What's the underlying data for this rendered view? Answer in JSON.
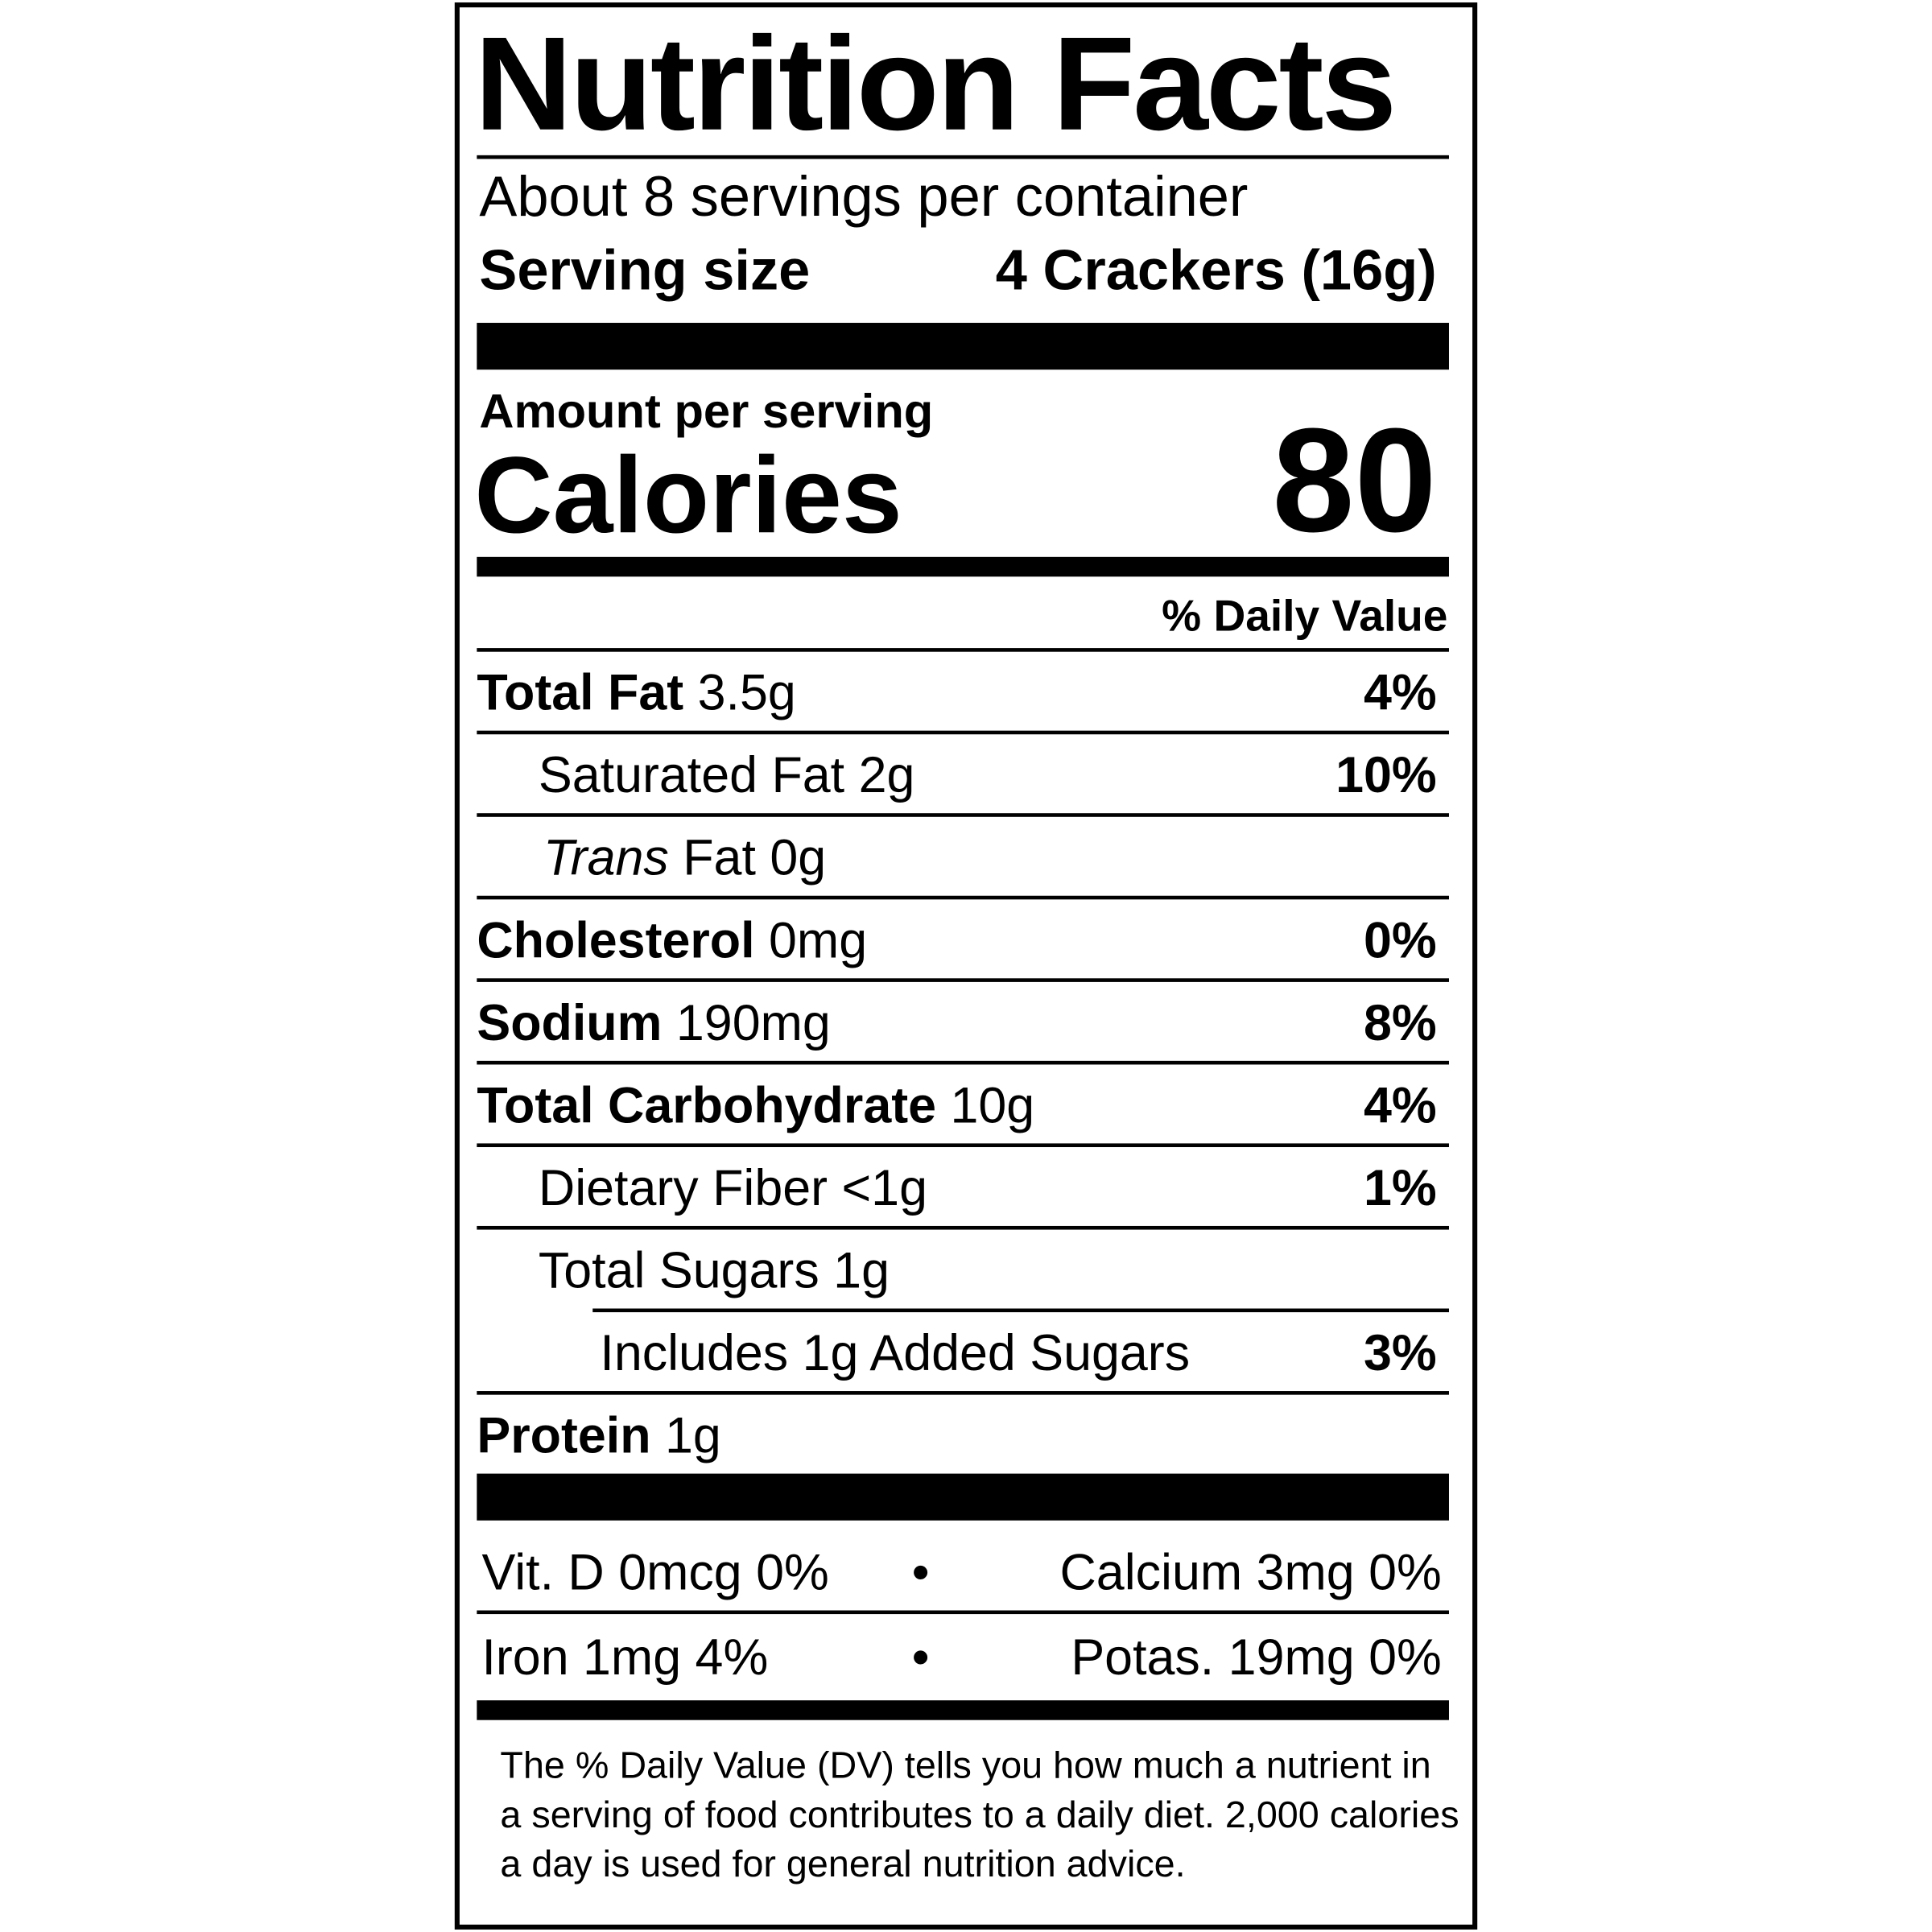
{
  "title": "Nutrition Facts",
  "servings_per_container": "About 8 servings per container",
  "serving_size": {
    "label": "Serving size",
    "value": "4 Crackers (16g)"
  },
  "amount_per_serving": "Amount per serving",
  "calories": {
    "label": "Calories",
    "value": "80"
  },
  "daily_value_header": "% Daily Value",
  "nutrients": [
    {
      "name": "Total Fat",
      "amount": "3.5g",
      "dv": "4%"
    },
    {
      "name": "Saturated Fat",
      "amount": "2g",
      "dv": "10%"
    },
    {
      "name_italic": "Trans",
      "name": "Fat",
      "amount": "0g",
      "dv": ""
    },
    {
      "name": "Cholesterol",
      "amount": "0mg",
      "dv": "0%"
    },
    {
      "name": "Sodium",
      "amount": "190mg",
      "dv": "8%"
    },
    {
      "name": "Total Carbohydrate",
      "amount": "10g",
      "dv": "4%"
    },
    {
      "name": "Dietary Fiber",
      "amount": "<1g",
      "dv": "1%"
    },
    {
      "name": "Total Sugars",
      "amount": "1g",
      "dv": ""
    },
    {
      "name": "Includes 1g Added Sugars",
      "amount": "",
      "dv": "3%"
    },
    {
      "name": "Protein",
      "amount": "1g",
      "dv": ""
    }
  ],
  "vitamins": [
    {
      "left": "Vit. D 0mcg 0%",
      "right": "Calcium 3mg 0%"
    },
    {
      "left": "Iron 1mg 4%",
      "right": "Potas. 19mg 0%"
    }
  ],
  "bullet": "•",
  "footnote": [
    "The % Daily Value (DV) tells you how much a nutrient in",
    "a serving of food contributes to a daily diet. 2,000 calories",
    "a day is used for general nutrition advice."
  ]
}
